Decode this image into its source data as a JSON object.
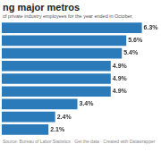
{
  "chart_data": {
    "type": "bar",
    "orientation": "horizontal",
    "title": "ng major metros",
    "subtitle": "of private industry employees for the year ended in October,",
    "source": "Source: Bureau of Labor Statistics · Get the data · Created with Datawrapper",
    "categories": [
      null,
      null,
      null,
      null,
      null,
      null,
      null,
      null,
      null
    ],
    "values": [
      6.3,
      5.6,
      5.4,
      4.9,
      4.9,
      4.9,
      3.4,
      2.4,
      2.1
    ],
    "value_labels": [
      "6.3%",
      "5.6%",
      "5.4%",
      "4.9%",
      "4.9%",
      "4.9%",
      "3.4%",
      "2.4%",
      "2.1%"
    ],
    "color": "#2b7bba",
    "xlim": [
      0,
      7
    ],
    "data_labels": true,
    "tick_labels": false,
    "grid": false
  }
}
